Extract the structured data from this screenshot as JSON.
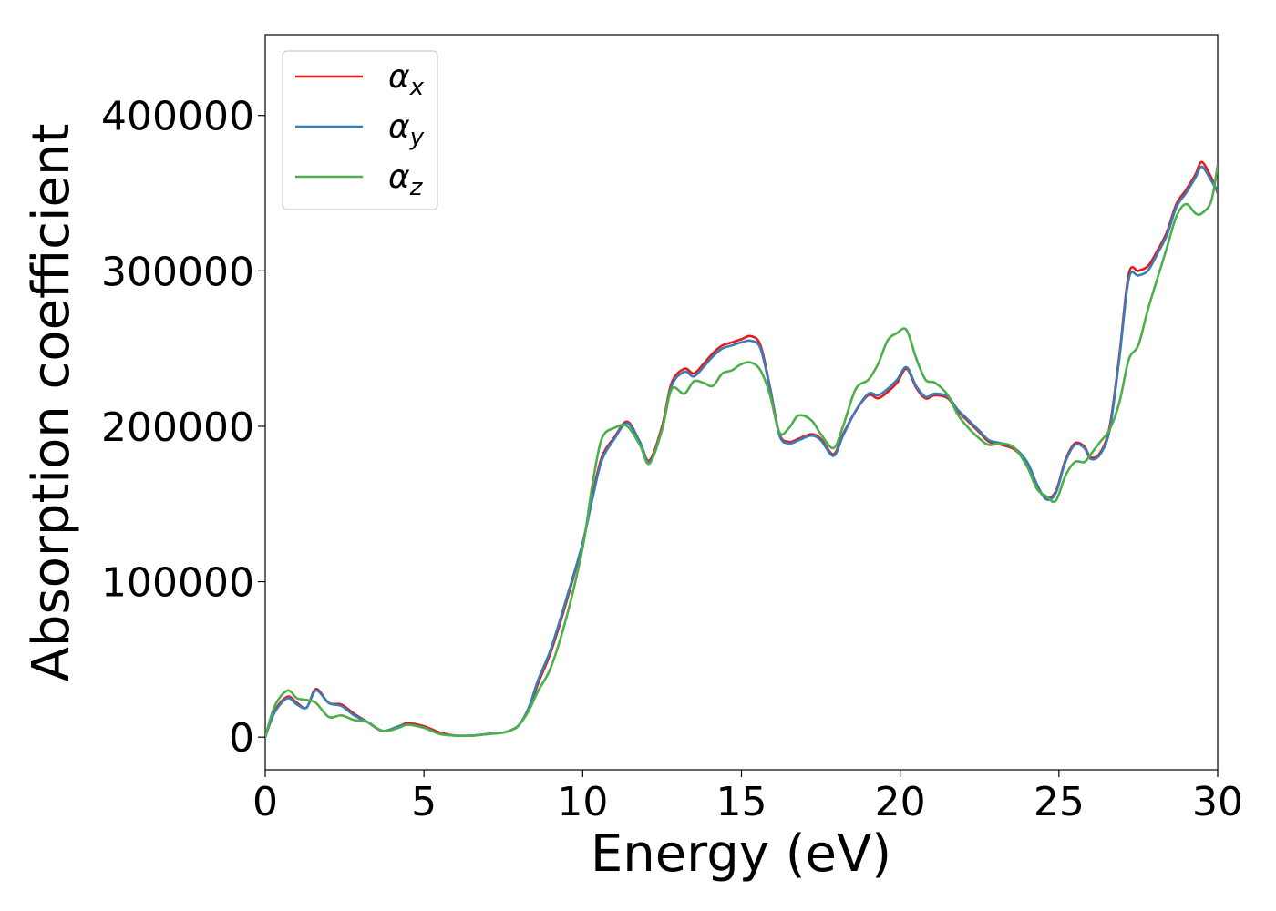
{
  "chart_data": {
    "type": "line",
    "title": "",
    "xlabel": "Energy (eV)",
    "ylabel": "Absorption coefficient",
    "xlim": [
      0,
      30
    ],
    "ylim": [
      -21000,
      452000
    ],
    "xticks": [
      0,
      5,
      10,
      15,
      20,
      25,
      30
    ],
    "xtick_labels": [
      "0",
      "5",
      "10",
      "15",
      "20",
      "25",
      "30"
    ],
    "yticks": [
      0,
      100000,
      200000,
      300000,
      400000
    ],
    "ytick_labels": [
      "0",
      "100000",
      "200000",
      "300000",
      "400000"
    ],
    "grid": false,
    "legend_position": "top-left",
    "series": [
      {
        "name": "α",
        "sub": "x",
        "color": "#e41a1c",
        "x": [
          0,
          0.3,
          0.7,
          1.0,
          1.3,
          1.6,
          2.0,
          2.4,
          2.8,
          3.2,
          3.7,
          4.2,
          4.5,
          5.0,
          5.5,
          6.0,
          6.5,
          7.0,
          7.5,
          7.8,
          8.0,
          8.3,
          8.6,
          9.0,
          9.5,
          10.0,
          10.3,
          10.6,
          11.0,
          11.4,
          11.8,
          12.1,
          12.5,
          12.8,
          13.2,
          13.5,
          13.8,
          14.1,
          14.4,
          14.7,
          15.0,
          15.3,
          15.6,
          15.9,
          16.2,
          16.5,
          16.8,
          17.2,
          17.5,
          17.9,
          18.2,
          18.6,
          19.0,
          19.3,
          19.6,
          19.9,
          20.2,
          20.5,
          20.8,
          21.1,
          21.5,
          21.8,
          22.1,
          22.5,
          22.8,
          23.2,
          23.6,
          24.0,
          24.3,
          24.6,
          24.9,
          25.2,
          25.5,
          25.8,
          26.0,
          26.3,
          26.6,
          26.9,
          27.2,
          27.5,
          27.8,
          28.1,
          28.4,
          28.7,
          29.0,
          29.3,
          29.5,
          29.8,
          30.0
        ],
        "y": [
          0,
          17000,
          26000,
          22000,
          19000,
          31000,
          22000,
          21000,
          15000,
          10000,
          4000,
          7000,
          9000,
          7000,
          3000,
          1000,
          1000,
          2000,
          3000,
          5000,
          8000,
          18000,
          35000,
          55000,
          88000,
          125000,
          155000,
          180000,
          193000,
          203000,
          190000,
          178000,
          200000,
          228000,
          237000,
          234000,
          240000,
          247000,
          252000,
          254000,
          256000,
          258000,
          252000,
          225000,
          195000,
          190000,
          192000,
          195000,
          192000,
          182000,
          195000,
          210000,
          220000,
          218000,
          222000,
          228000,
          237000,
          225000,
          218000,
          220000,
          218000,
          210000,
          204000,
          196000,
          190000,
          188000,
          185000,
          176000,
          162000,
          154000,
          158000,
          178000,
          189000,
          187000,
          180000,
          183000,
          200000,
          245000,
          298000,
          300000,
          303000,
          313000,
          325000,
          343000,
          352000,
          362000,
          370000,
          360000,
          350000
        ]
      },
      {
        "name": "α",
        "sub": "y",
        "color": "#377eb8",
        "x": [
          0,
          0.3,
          0.7,
          1.0,
          1.3,
          1.6,
          2.0,
          2.4,
          2.8,
          3.2,
          3.7,
          4.2,
          4.5,
          5.0,
          5.5,
          6.0,
          6.5,
          7.0,
          7.5,
          7.8,
          8.0,
          8.3,
          8.6,
          9.0,
          9.5,
          10.0,
          10.3,
          10.6,
          11.0,
          11.4,
          11.8,
          12.1,
          12.5,
          12.8,
          13.2,
          13.5,
          13.8,
          14.1,
          14.4,
          14.7,
          15.0,
          15.3,
          15.6,
          15.9,
          16.2,
          16.5,
          16.8,
          17.2,
          17.5,
          17.9,
          18.2,
          18.6,
          19.0,
          19.3,
          19.6,
          19.9,
          20.2,
          20.5,
          20.8,
          21.1,
          21.5,
          21.8,
          22.1,
          22.5,
          22.8,
          23.2,
          23.6,
          24.0,
          24.3,
          24.6,
          24.9,
          25.2,
          25.5,
          25.8,
          26.0,
          26.3,
          26.6,
          26.9,
          27.2,
          27.5,
          27.8,
          28.1,
          28.4,
          28.7,
          29.0,
          29.3,
          29.5,
          29.8,
          30.0
        ],
        "y": [
          0,
          16000,
          25000,
          21000,
          19000,
          30000,
          22000,
          20000,
          14000,
          10000,
          4000,
          7000,
          8000,
          6000,
          2000,
          1000,
          1000,
          2000,
          3000,
          5000,
          8000,
          19000,
          37000,
          57000,
          90000,
          125000,
          153000,
          178000,
          192000,
          202000,
          190000,
          177000,
          198000,
          226000,
          235000,
          232000,
          238000,
          245000,
          250000,
          252000,
          254000,
          255000,
          250000,
          224000,
          194000,
          189000,
          191000,
          194000,
          191000,
          181000,
          194000,
          210000,
          221000,
          220000,
          224000,
          230000,
          238000,
          226000,
          219000,
          221000,
          219000,
          211000,
          205000,
          197000,
          191000,
          189000,
          186000,
          177000,
          163000,
          153000,
          157000,
          177000,
          188000,
          186000,
          179000,
          182000,
          198000,
          243000,
          295000,
          297000,
          300000,
          311000,
          323000,
          341000,
          350000,
          360000,
          367000,
          358000,
          351000
        ]
      },
      {
        "name": "α",
        "sub": "z",
        "color": "#4daf4a",
        "x": [
          0,
          0.3,
          0.7,
          1.0,
          1.3,
          1.6,
          2.0,
          2.4,
          2.8,
          3.2,
          3.7,
          4.2,
          4.5,
          5.0,
          5.5,
          6.0,
          6.5,
          7.0,
          7.5,
          7.8,
          8.0,
          8.3,
          8.6,
          9.0,
          9.5,
          10.0,
          10.3,
          10.6,
          11.0,
          11.4,
          11.8,
          12.1,
          12.5,
          12.8,
          13.2,
          13.5,
          13.8,
          14.1,
          14.4,
          14.7,
          15.0,
          15.3,
          15.6,
          15.9,
          16.2,
          16.5,
          16.8,
          17.2,
          17.5,
          17.9,
          18.2,
          18.6,
          19.0,
          19.3,
          19.6,
          19.9,
          20.2,
          20.5,
          20.8,
          21.1,
          21.5,
          21.8,
          22.1,
          22.5,
          22.8,
          23.2,
          23.6,
          24.0,
          24.3,
          24.6,
          24.9,
          25.2,
          25.5,
          25.8,
          26.0,
          26.3,
          26.6,
          26.9,
          27.2,
          27.5,
          27.8,
          28.1,
          28.4,
          28.7,
          29.0,
          29.3,
          29.5,
          29.8,
          30.0
        ],
        "y": [
          0,
          20000,
          30000,
          25000,
          24000,
          22000,
          13000,
          14000,
          11000,
          10000,
          4000,
          6000,
          8000,
          6000,
          2000,
          1000,
          1000,
          2000,
          3000,
          5000,
          8000,
          17000,
          30000,
          45000,
          78000,
          122000,
          162000,
          192000,
          199000,
          200000,
          188000,
          176000,
          198000,
          224000,
          221000,
          229000,
          228000,
          226000,
          234000,
          236000,
          240000,
          241000,
          236000,
          220000,
          196000,
          199000,
          207000,
          204000,
          195000,
          186000,
          200000,
          224000,
          230000,
          240000,
          255000,
          260000,
          262000,
          244000,
          230000,
          228000,
          220000,
          208000,
          200000,
          192000,
          188000,
          189000,
          186000,
          174000,
          160000,
          155000,
          152000,
          168000,
          177000,
          177000,
          182000,
          190000,
          198000,
          215000,
          243000,
          252000,
          275000,
          295000,
          315000,
          335000,
          343000,
          337000,
          337000,
          345000,
          368000
        ]
      }
    ]
  }
}
